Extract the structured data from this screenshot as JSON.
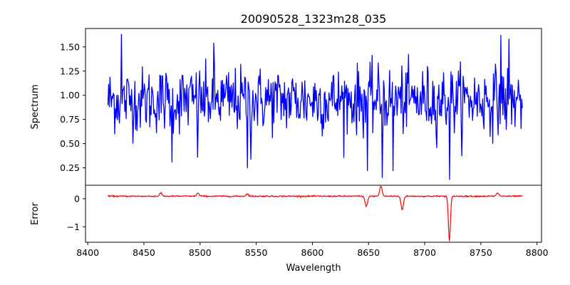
{
  "chart_data": [
    {
      "type": "line",
      "title": "20090528_1323m28_035",
      "xlabel": "",
      "ylabel": "Spectrum",
      "xlim": [
        8398,
        8804
      ],
      "ylim": [
        0.07,
        1.69
      ],
      "yticks": [
        0.25,
        0.5,
        0.75,
        1.0,
        1.25,
        1.5
      ],
      "ytick_labels": [
        "0.25",
        "0.50",
        "0.75",
        "1.00",
        "1.25",
        "1.50"
      ],
      "x_range": [
        8418,
        8787
      ],
      "baseline": 0.95,
      "grid": false,
      "series": [
        {
          "color": "#0000ff",
          "values_note_x": [
            8418,
            8430,
            8440,
            8475,
            8498,
            8512,
            8540,
            8543,
            8545,
            8648,
            8662,
            8672,
            8722,
            8770
          ],
          "features": [
            {
              "x": 8430,
              "y": 1.63
            },
            {
              "x": 8475,
              "y": 0.31
            },
            {
              "x": 8498,
              "y": 0.36
            },
            {
              "x": 8512,
              "y": 1.54
            },
            {
              "x": 8542,
              "y": 0.25
            },
            {
              "x": 8545,
              "y": 0.34
            },
            {
              "x": 8649,
              "y": 0.22
            },
            {
              "x": 8662,
              "y": 0.15
            },
            {
              "x": 8672,
              "y": 0.22
            },
            {
              "x": 8722,
              "y": 0.13
            },
            {
              "x": 8768,
              "y": 1.62
            },
            {
              "x": 8775,
              "y": 1.58
            }
          ]
        }
      ]
    },
    {
      "type": "line",
      "title": "",
      "xlabel": "Wavelength",
      "ylabel": "Error",
      "xlim": [
        8398,
        8804
      ],
      "ylim": [
        -1.55,
        0.48
      ],
      "yticks": [
        0,
        -1
      ],
      "ytick_labels": [
        "0",
        "−1"
      ],
      "xticks": [
        8400,
        8450,
        8500,
        8550,
        8600,
        8650,
        8700,
        8750,
        8800
      ],
      "xtick_labels": [
        "8400",
        "8450",
        "8500",
        "8550",
        "8600",
        "8650",
        "8700",
        "8750",
        "8800"
      ],
      "x_range": [
        8418,
        8787
      ],
      "baseline": 0.09,
      "grid": false,
      "series": [
        {
          "color": "#ff0000",
          "features": [
            {
              "x": 8465,
              "y": 0.2
            },
            {
              "x": 8498,
              "y": 0.2
            },
            {
              "x": 8542,
              "y": 0.17
            },
            {
              "x": 8648,
              "y": -0.28
            },
            {
              "x": 8661,
              "y": 0.45
            },
            {
              "x": 8680,
              "y": -0.38
            },
            {
              "x": 8722,
              "y": -1.5
            },
            {
              "x": 8765,
              "y": 0.2
            }
          ]
        }
      ]
    }
  ]
}
